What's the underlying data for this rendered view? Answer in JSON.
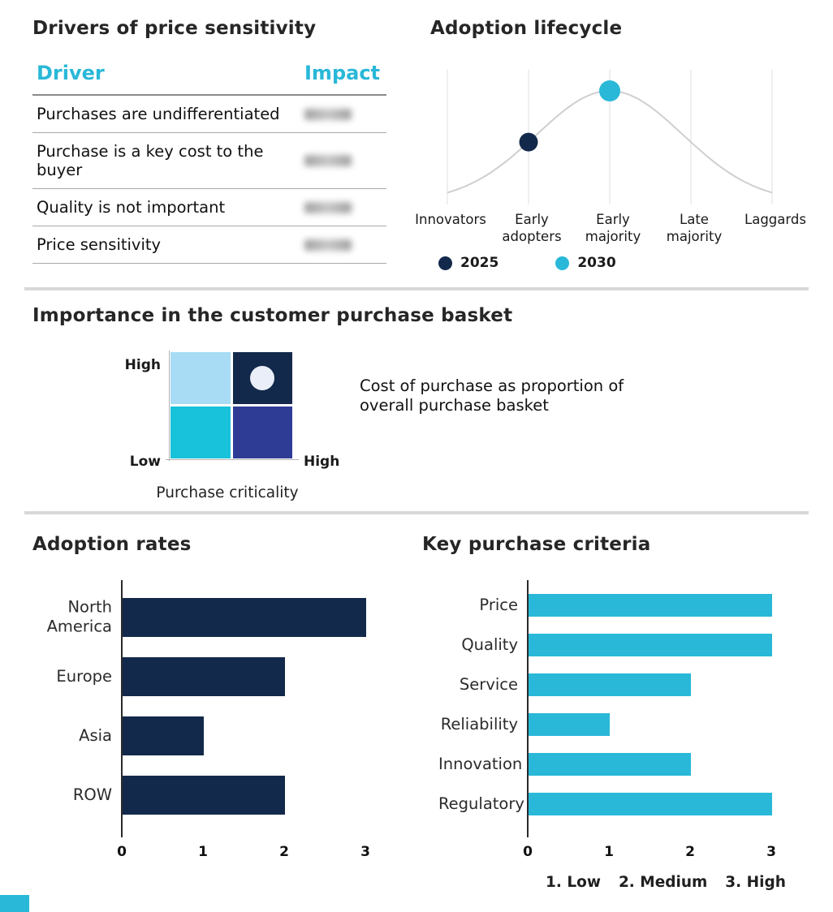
{
  "colors": {
    "navy": "#13294b",
    "cyan": "#29b8d8",
    "light_blue": "#a8dcf4",
    "bright_teal": "#18c2da",
    "indigo": "#2e3c96",
    "marker_white": "#e9eef8",
    "curve": "#cfcfcf",
    "gridline": "#e4e4e4",
    "divider": "#d8d8d8"
  },
  "drivers_table": {
    "title": "Drivers of price sensitivity",
    "columns": [
      "Driver",
      "Impact"
    ],
    "rows": [
      {
        "driver": "Purchases are undifferentiated",
        "impact_redacted": true
      },
      {
        "driver": "Purchase is a key cost to the buyer",
        "impact_redacted": true
      },
      {
        "driver": "Quality is not important",
        "impact_redacted": true
      },
      {
        "driver": "Price sensitivity",
        "impact_redacted": true
      }
    ]
  },
  "chart_data": [
    {
      "id": "adoption_lifecycle",
      "type": "line",
      "title": "Adoption lifecycle",
      "categories": [
        "Innovators",
        "Early adopters",
        "Early majority",
        "Late majority",
        "Laggards"
      ],
      "curve": {
        "shape": "bell",
        "color": "#cfcfcf"
      },
      "markers": [
        {
          "label": "2025",
          "category": "Early adopters",
          "color": "#13294b"
        },
        {
          "label": "2030",
          "category": "Early majority",
          "color": "#29b8d8"
        }
      ],
      "legend": [
        {
          "label": "2025",
          "color": "#13294b"
        },
        {
          "label": "2030",
          "color": "#29b8d8"
        }
      ],
      "grid": "vertical gridline at each category"
    },
    {
      "id": "purchase_basket_matrix",
      "type": "heatmap",
      "title": "Importance in the customer purchase basket",
      "y_axis": {
        "top_label": "High",
        "bottom_label": "Low"
      },
      "x_axis": {
        "label": "Purchase criticality",
        "max_label": "High"
      },
      "quadrants": [
        {
          "position": "top-left",
          "color": "#a8dcf4"
        },
        {
          "position": "top-right",
          "color": "#13294b",
          "marker": true,
          "marker_color": "#e9eef8"
        },
        {
          "position": "bottom-left",
          "color": "#18c2da"
        },
        {
          "position": "bottom-right",
          "color": "#2e3c96"
        }
      ],
      "annotation": "Cost of purchase as proportion of overall purchase basket"
    },
    {
      "id": "adoption_rates",
      "type": "bar",
      "orientation": "horizontal",
      "title": "Adoption rates",
      "categories": [
        "North America",
        "Europe",
        "Asia",
        "ROW"
      ],
      "values": [
        3,
        2,
        1,
        2
      ],
      "xlim": [
        0,
        3
      ],
      "xticks": [
        0,
        1,
        2,
        3
      ],
      "bar_color": "#13294b"
    },
    {
      "id": "key_purchase_criteria",
      "type": "bar",
      "orientation": "horizontal",
      "title": "Key purchase criteria",
      "categories": [
        "Price",
        "Quality",
        "Service",
        "Reliability",
        "Innovation",
        "Regulatory"
      ],
      "values": [
        3,
        3,
        2,
        1,
        2,
        3
      ],
      "xlim": [
        0,
        3
      ],
      "xticks": [
        0,
        1,
        2,
        3
      ],
      "bar_color": "#29b8d8",
      "scale_note": [
        "1. Low",
        "2. Medium",
        "3. High"
      ]
    }
  ]
}
